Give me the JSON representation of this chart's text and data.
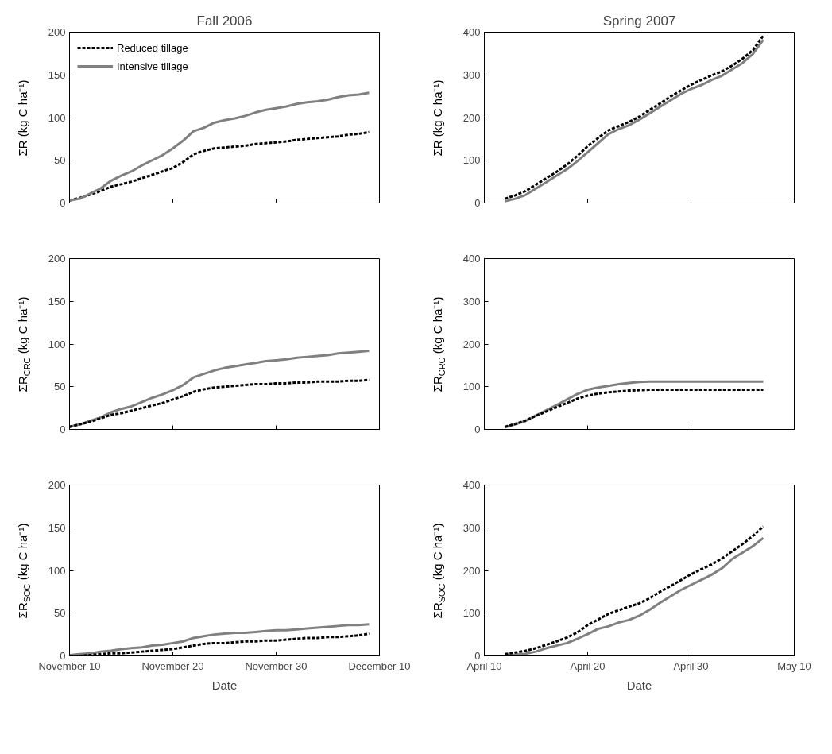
{
  "chart_data": [
    {
      "type": "line",
      "title": "Fall 2006",
      "ylabel": "ΣR (kg C ha⁻¹)",
      "xlim": [
        "2006-11-10",
        "2006-12-10"
      ],
      "xticks": [
        {
          "value": "2006-11-10",
          "label": null
        },
        {
          "value": "2006-11-20",
          "label": null
        },
        {
          "value": "2006-11-30",
          "label": null
        },
        {
          "value": "2006-12-10",
          "label": null
        }
      ],
      "ylim": [
        0,
        200
      ],
      "yticks": [
        0,
        50,
        100,
        150,
        200
      ],
      "tick_labels": "y",
      "legend": "top left",
      "x": [
        "2006-11-10",
        "2006-11-11",
        "2006-11-12",
        "2006-11-13",
        "2006-11-14",
        "2006-11-15",
        "2006-11-16",
        "2006-11-17",
        "2006-11-18",
        "2006-11-19",
        "2006-11-20",
        "2006-11-21",
        "2006-11-22",
        "2006-11-23",
        "2006-11-24",
        "2006-11-25",
        "2006-11-26",
        "2006-11-27",
        "2006-11-28",
        "2006-11-29",
        "2006-11-30",
        "2006-12-01",
        "2006-12-02",
        "2006-12-03",
        "2006-12-04",
        "2006-12-05",
        "2006-12-06",
        "2006-12-07",
        "2006-12-08",
        "2006-12-09"
      ],
      "series": [
        {
          "name": "Reduced tillage",
          "color": "#000000",
          "line_style": "dashed",
          "values": [
            3,
            6,
            10,
            14,
            19,
            22,
            25,
            29,
            33,
            37,
            41,
            48,
            57,
            61,
            64,
            65,
            66,
            67,
            69,
            70,
            71,
            72,
            74,
            75,
            76,
            77,
            78,
            80,
            81,
            83
          ]
        },
        {
          "name": "Intensive tillage",
          "color": "#808080",
          "line_style": "solid",
          "values": [
            3,
            5,
            11,
            17,
            26,
            32,
            37,
            44,
            50,
            56,
            64,
            73,
            84,
            88,
            94,
            97,
            99,
            102,
            106,
            109,
            111,
            113,
            116,
            118,
            119,
            121,
            124,
            126,
            127,
            129
          ]
        }
      ]
    },
    {
      "type": "line",
      "title": "Spring 2007",
      "ylabel": "ΣR (kg C ha⁻¹)",
      "xlim": [
        "2007-04-10",
        "2007-05-10"
      ],
      "xticks": [
        {
          "value": "2007-04-10",
          "label": null
        },
        {
          "value": "2007-04-20",
          "label": null
        },
        {
          "value": "2007-04-30",
          "label": null
        },
        {
          "value": "2007-05-10",
          "label": null
        }
      ],
      "ylim": [
        0,
        400
      ],
      "yticks": [
        0,
        100,
        200,
        300,
        400
      ],
      "tick_labels": "y",
      "x": [
        "2007-04-12",
        "2007-04-13",
        "2007-04-14",
        "2007-04-15",
        "2007-04-16",
        "2007-04-17",
        "2007-04-18",
        "2007-04-19",
        "2007-04-20",
        "2007-04-21",
        "2007-04-22",
        "2007-04-23",
        "2007-04-24",
        "2007-04-25",
        "2007-04-26",
        "2007-04-27",
        "2007-04-28",
        "2007-04-29",
        "2007-04-30",
        "2007-05-01",
        "2007-05-02",
        "2007-05-03",
        "2007-05-04",
        "2007-05-05",
        "2007-05-06",
        "2007-05-07"
      ],
      "series": [
        {
          "color": "#808080",
          "line_style": "solid",
          "values": [
            4,
            10,
            19,
            34,
            49,
            64,
            79,
            98,
            119,
            140,
            161,
            173,
            182,
            195,
            210,
            225,
            240,
            255,
            267,
            276,
            288,
            298,
            313,
            328,
            349,
            382
          ]
        },
        {
          "color": "#000000",
          "line_style": "dashed",
          "values": [
            10,
            18,
            28,
            43,
            58,
            73,
            90,
            110,
            133,
            152,
            170,
            180,
            190,
            202,
            218,
            233,
            249,
            263,
            277,
            288,
            299,
            308,
            322,
            338,
            358,
            392
          ]
        }
      ]
    },
    {
      "type": "line",
      "ylabel": "ΣR$_{CRC}$ (kg C ha⁻¹)",
      "xlim": [
        "2006-11-10",
        "2006-12-10"
      ],
      "xticks": [
        {
          "value": "2006-11-10",
          "label": null
        },
        {
          "value": "2006-11-20",
          "label": null
        },
        {
          "value": "2006-11-30",
          "label": null
        },
        {
          "value": "2006-12-10",
          "label": null
        }
      ],
      "ylim": [
        0,
        200
      ],
      "yticks": [
        0,
        50,
        100,
        150,
        200
      ],
      "tick_labels": "y",
      "x": [
        "2006-11-10",
        "2006-11-11",
        "2006-11-12",
        "2006-11-13",
        "2006-11-14",
        "2006-11-15",
        "2006-11-16",
        "2006-11-17",
        "2006-11-18",
        "2006-11-19",
        "2006-11-20",
        "2006-11-21",
        "2006-11-22",
        "2006-11-23",
        "2006-11-24",
        "2006-11-25",
        "2006-11-26",
        "2006-11-27",
        "2006-11-28",
        "2006-11-29",
        "2006-11-30",
        "2006-12-01",
        "2006-12-02",
        "2006-12-03",
        "2006-12-04",
        "2006-12-05",
        "2006-12-06",
        "2006-12-07",
        "2006-12-08",
        "2006-12-09"
      ],
      "series": [
        {
          "color": "#808080",
          "line_style": "solid",
          "values": [
            3,
            6,
            10,
            14,
            20,
            24,
            27,
            32,
            37,
            41,
            46,
            52,
            61,
            65,
            69,
            72,
            74,
            76,
            78,
            80,
            81,
            82,
            84,
            85,
            86,
            87,
            89,
            90,
            91,
            92
          ]
        },
        {
          "color": "#000000",
          "line_style": "dashed",
          "values": [
            3,
            6,
            9,
            13,
            17,
            19,
            22,
            25,
            28,
            31,
            35,
            39,
            44,
            47,
            49,
            50,
            51,
            52,
            53,
            53,
            54,
            54,
            55,
            55,
            56,
            56,
            56,
            57,
            57,
            58
          ]
        }
      ]
    },
    {
      "type": "line",
      "ylabel": "ΣR$_{CRC}$ (kg C ha⁻¹)",
      "xlim": [
        "2007-04-10",
        "2007-05-10"
      ],
      "xticks": [
        {
          "value": "2007-04-10",
          "label": null
        },
        {
          "value": "2007-04-20",
          "label": null
        },
        {
          "value": "2007-04-30",
          "label": null
        },
        {
          "value": "2007-05-10",
          "label": null
        }
      ],
      "ylim": [
        0,
        400
      ],
      "yticks": [
        0,
        100,
        200,
        300,
        400
      ],
      "tick_labels": "y",
      "x": [
        "2007-04-12",
        "2007-04-13",
        "2007-04-14",
        "2007-04-15",
        "2007-04-16",
        "2007-04-17",
        "2007-04-18",
        "2007-04-19",
        "2007-04-20",
        "2007-04-21",
        "2007-04-22",
        "2007-04-23",
        "2007-04-24",
        "2007-04-25",
        "2007-04-26",
        "2007-04-27",
        "2007-04-28",
        "2007-04-29",
        "2007-04-30",
        "2007-05-01",
        "2007-05-02",
        "2007-05-03",
        "2007-05-04",
        "2007-05-05",
        "2007-05-06",
        "2007-05-07"
      ],
      "series": [
        {
          "color": "#808080",
          "line_style": "solid",
          "values": [
            5,
            12,
            20,
            33,
            45,
            57,
            70,
            83,
            93,
            98,
            102,
            106,
            109,
            111,
            112,
            112,
            112,
            112,
            112,
            112,
            112,
            112,
            112,
            112,
            112,
            112
          ]
        },
        {
          "color": "#000000",
          "line_style": "dashed",
          "values": [
            6,
            13,
            21,
            32,
            42,
            52,
            62,
            72,
            79,
            84,
            87,
            89,
            91,
            92,
            93,
            93,
            93,
            93,
            93,
            93,
            93,
            93,
            93,
            93,
            93,
            93
          ]
        }
      ]
    },
    {
      "type": "line",
      "ylabel": "ΣR$_{SOC}$ (kg C ha⁻¹)",
      "xlabel": "Date",
      "xlim": [
        "2006-11-10",
        "2006-12-10"
      ],
      "xticks": [
        {
          "value": "2006-11-10",
          "label": "November 10"
        },
        {
          "value": "2006-11-20",
          "label": "November 20"
        },
        {
          "value": "2006-11-30",
          "label": "November 30"
        },
        {
          "value": "2006-12-10",
          "label": "December 10"
        }
      ],
      "ylim": [
        0,
        200
      ],
      "yticks": [
        0,
        50,
        100,
        150,
        200
      ],
      "x": [
        "2006-11-10",
        "2006-11-11",
        "2006-11-12",
        "2006-11-13",
        "2006-11-14",
        "2006-11-15",
        "2006-11-16",
        "2006-11-17",
        "2006-11-18",
        "2006-11-19",
        "2006-11-20",
        "2006-11-21",
        "2006-11-22",
        "2006-11-23",
        "2006-11-24",
        "2006-11-25",
        "2006-11-26",
        "2006-11-27",
        "2006-11-28",
        "2006-11-29",
        "2006-11-30",
        "2006-12-01",
        "2006-12-02",
        "2006-12-03",
        "2006-12-04",
        "2006-12-05",
        "2006-12-06",
        "2006-12-07",
        "2006-12-08",
        "2006-12-09"
      ],
      "series": [
        {
          "color": "#808080",
          "line_style": "solid",
          "values": [
            1,
            2,
            3,
            5,
            6,
            8,
            9,
            10,
            12,
            13,
            15,
            17,
            21,
            23,
            25,
            26,
            27,
            27,
            28,
            29,
            30,
            30,
            31,
            32,
            33,
            34,
            35,
            36,
            36,
            37
          ]
        },
        {
          "color": "#000000",
          "line_style": "dashed",
          "values": [
            0,
            0,
            1,
            2,
            3,
            3,
            4,
            5,
            6,
            7,
            8,
            10,
            12,
            14,
            15,
            15,
            16,
            17,
            17,
            18,
            18,
            19,
            20,
            21,
            21,
            22,
            22,
            23,
            24,
            26
          ]
        }
      ]
    },
    {
      "type": "line",
      "ylabel": "ΣR$_{SOC}$ (kg C ha⁻¹)",
      "xlabel": "Date",
      "xlim": [
        "2007-04-10",
        "2007-05-10"
      ],
      "xticks": [
        {
          "value": "2007-04-10",
          "label": "April 10"
        },
        {
          "value": "2007-04-20",
          "label": "April 20"
        },
        {
          "value": "2007-04-30",
          "label": "April 30"
        },
        {
          "value": "2007-05-10",
          "label": "May 10"
        }
      ],
      "ylim": [
        0,
        400
      ],
      "yticks": [
        0,
        100,
        200,
        300,
        400
      ],
      "x": [
        "2007-04-12",
        "2007-04-13",
        "2007-04-14",
        "2007-04-15",
        "2007-04-16",
        "2007-04-17",
        "2007-04-18",
        "2007-04-19",
        "2007-04-20",
        "2007-04-21",
        "2007-04-22",
        "2007-04-23",
        "2007-04-24",
        "2007-04-25",
        "2007-04-26",
        "2007-04-27",
        "2007-04-28",
        "2007-04-29",
        "2007-04-30",
        "2007-05-01",
        "2007-05-02",
        "2007-05-03",
        "2007-05-04",
        "2007-05-05",
        "2007-05-06",
        "2007-05-07"
      ],
      "series": [
        {
          "color": "#808080",
          "line_style": "solid",
          "values": [
            2,
            3,
            5,
            10,
            18,
            24,
            30,
            40,
            51,
            63,
            69,
            78,
            84,
            94,
            108,
            124,
            139,
            154,
            166,
            178,
            190,
            205,
            227,
            242,
            257,
            276
          ]
        },
        {
          "color": "#000000",
          "line_style": "dashed",
          "values": [
            4,
            8,
            12,
            18,
            26,
            34,
            43,
            55,
            72,
            85,
            98,
            107,
            115,
            123,
            135,
            150,
            163,
            177,
            191,
            203,
            214,
            228,
            245,
            262,
            281,
            303
          ]
        }
      ]
    }
  ]
}
